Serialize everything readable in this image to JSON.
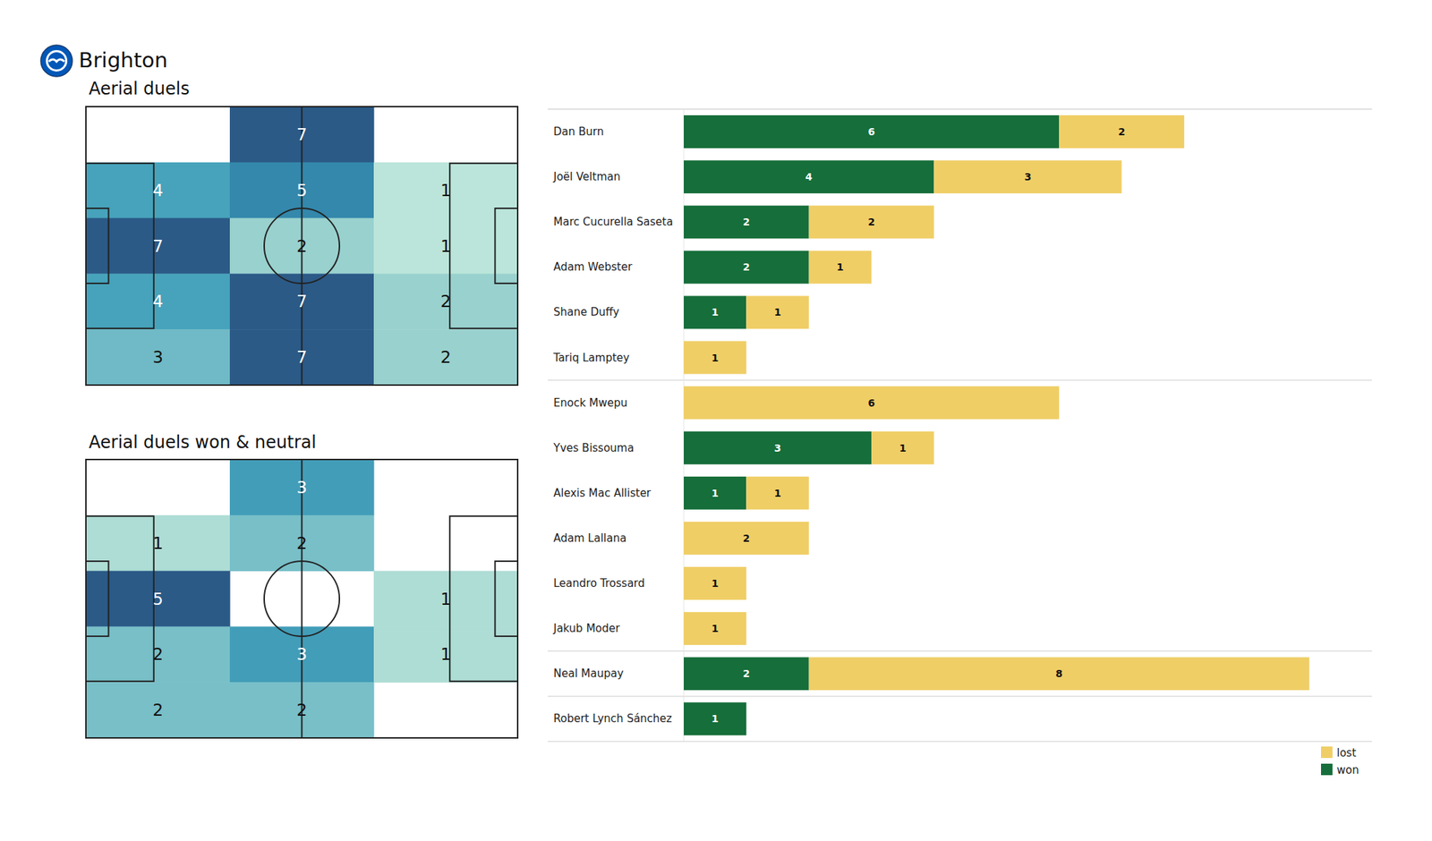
{
  "title": "Brighton",
  "chart_data": [
    {
      "type": "heatmap",
      "title": "Aerial duels",
      "cells": [
        [
          null,
          7,
          null
        ],
        [
          4,
          5,
          1
        ],
        [
          7,
          2,
          1
        ],
        [
          4,
          7,
          2
        ],
        [
          3,
          7,
          2
        ]
      ],
      "tick_labels": false
    },
    {
      "type": "heatmap",
      "title": "Aerial duels won & neutral",
      "cells": [
        [
          null,
          3,
          null
        ],
        [
          1,
          2,
          null
        ],
        [
          5,
          null,
          1
        ],
        [
          2,
          3,
          1
        ],
        [
          2,
          2,
          null
        ]
      ],
      "tick_labels": false
    },
    {
      "type": "bar",
      "orientation": "horizontal",
      "stacked": true,
      "data_labels": true,
      "legend": "lower right",
      "tick_labels": "y",
      "xlim": [
        0,
        11
      ],
      "categories": [
        "Dan Burn",
        "Joël Veltman",
        "Marc Cucurella Saseta",
        "Adam Webster",
        "Shane Duffy",
        "Tariq Lamptey",
        "Enock Mwepu",
        "Yves Bissouma",
        "Alexis Mac Allister",
        "Adam Lallana",
        "Leandro Trossard",
        "Jakub Moder",
        "Neal Maupay",
        "Robert Lynch Sánchez"
      ],
      "series": [
        {
          "name": "won",
          "color": "#166e3a",
          "values": [
            6,
            4,
            2,
            2,
            1,
            0,
            0,
            3,
            1,
            0,
            0,
            0,
            2,
            1
          ]
        },
        {
          "name": "lost",
          "color": "#f0ce66",
          "values": [
            2,
            3,
            2,
            1,
            1,
            1,
            6,
            1,
            1,
            2,
            1,
            1,
            8,
            0
          ]
        }
      ]
    }
  ]
}
